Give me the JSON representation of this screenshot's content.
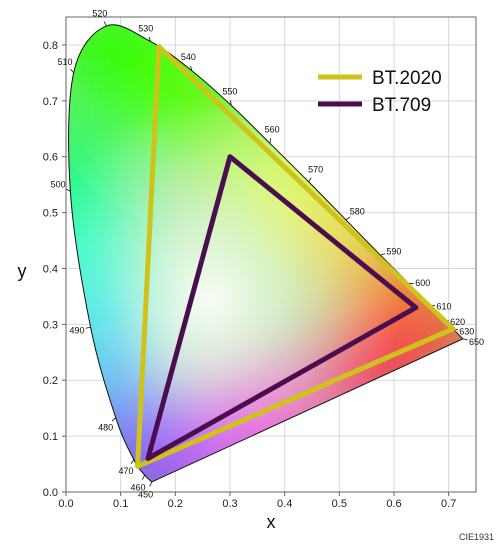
{
  "chart_data": {
    "type": "scatter",
    "title": "",
    "xlabel": "x",
    "ylabel": "y",
    "xlim": [
      0.0,
      0.75
    ],
    "ylim": [
      0.0,
      0.85
    ],
    "x_ticks": [
      "0.0",
      "0.1",
      "0.2",
      "0.3",
      "0.4",
      "0.5",
      "0.6",
      "0.7"
    ],
    "y_ticks": [
      "0.0",
      "0.1",
      "0.2",
      "0.3",
      "0.4",
      "0.5",
      "0.6",
      "0.7",
      "0.8"
    ],
    "grid": true,
    "legend_position": "top-right",
    "spectral_locus": [
      {
        "label": "450",
        "x": 0.157,
        "y": 0.018
      },
      {
        "label": "460",
        "x": 0.144,
        "y": 0.03
      },
      {
        "label": "470",
        "x": 0.124,
        "y": 0.058
      },
      {
        "label": "480",
        "x": 0.091,
        "y": 0.133
      },
      {
        "label": "490",
        "x": 0.045,
        "y": 0.295
      },
      {
        "label": "500",
        "x": 0.008,
        "y": 0.538
      },
      {
        "label": "510",
        "x": 0.014,
        "y": 0.75
      },
      {
        "label": "520",
        "x": 0.074,
        "y": 0.834
      },
      {
        "label": "530",
        "x": 0.155,
        "y": 0.806
      },
      {
        "label": "540",
        "x": 0.23,
        "y": 0.754
      },
      {
        "label": "550",
        "x": 0.302,
        "y": 0.692
      },
      {
        "label": "560",
        "x": 0.373,
        "y": 0.624
      },
      {
        "label": "570",
        "x": 0.444,
        "y": 0.555
      },
      {
        "label": "580",
        "x": 0.512,
        "y": 0.487
      },
      {
        "label": "590",
        "x": 0.575,
        "y": 0.424
      },
      {
        "label": "600",
        "x": 0.627,
        "y": 0.373
      },
      {
        "label": "610",
        "x": 0.666,
        "y": 0.334
      },
      {
        "label": "620",
        "x": 0.691,
        "y": 0.308
      },
      {
        "label": "630",
        "x": 0.708,
        "y": 0.292
      },
      {
        "label": "650",
        "x": 0.726,
        "y": 0.274
      }
    ],
    "series": [
      {
        "name": "BT.2020",
        "color": "#cfc21a",
        "points": [
          [
            0.708,
            0.292
          ],
          [
            0.17,
            0.797
          ],
          [
            0.131,
            0.046
          ]
        ]
      },
      {
        "name": "BT.709",
        "color": "#4a0e4e",
        "points": [
          [
            0.64,
            0.33
          ],
          [
            0.3,
            0.6
          ],
          [
            0.15,
            0.06
          ]
        ]
      }
    ]
  },
  "credit": "CIE1931"
}
